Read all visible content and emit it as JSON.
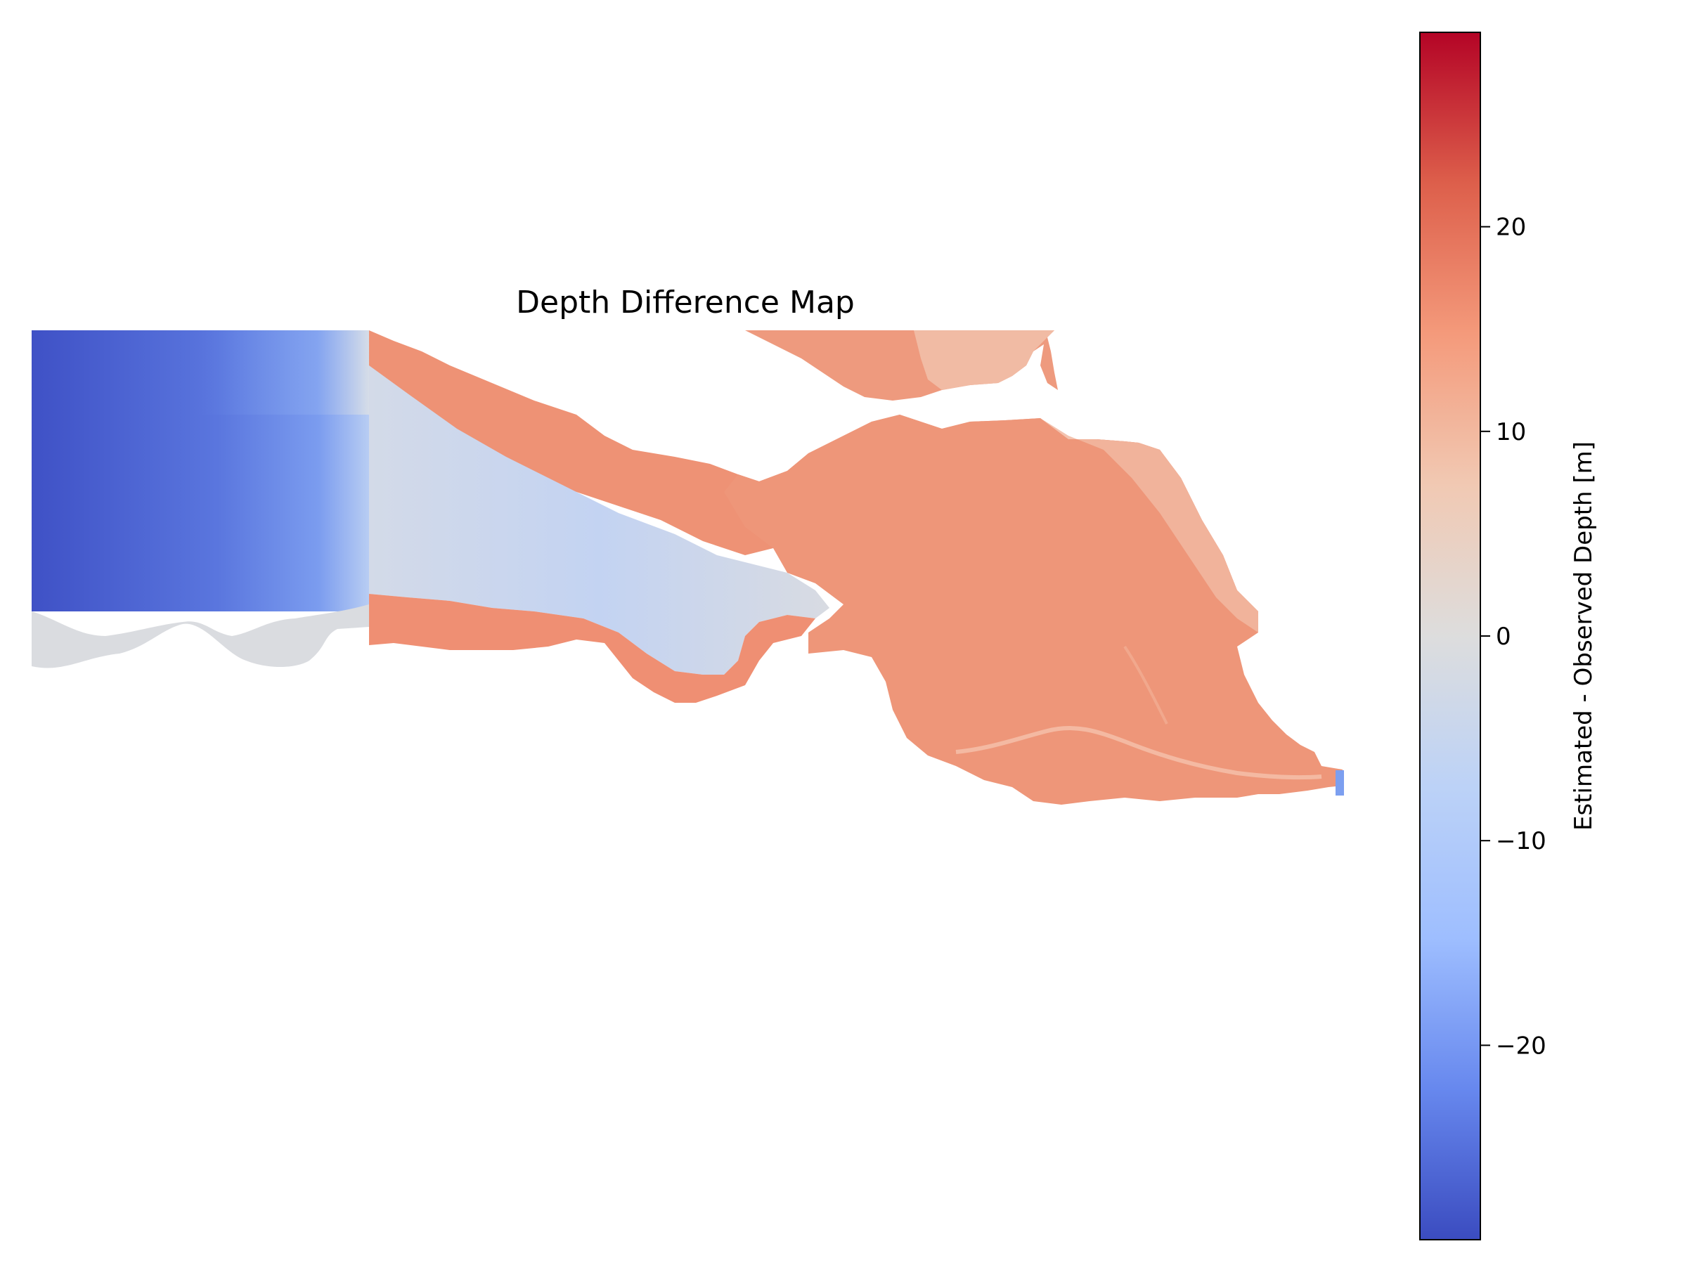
{
  "title": "Depth Difference Map",
  "colorbar": {
    "label": "Estimated - Observed Depth [m]",
    "colormap": "coolwarm",
    "range": [
      -29.5,
      29.5
    ],
    "ticks": [
      {
        "value": 20,
        "label": "20"
      },
      {
        "value": 10,
        "label": "10"
      },
      {
        "value": 0,
        "label": "0"
      },
      {
        "value": -10,
        "label": "−10"
      },
      {
        "value": -20,
        "label": "−20"
      }
    ],
    "stops": [
      {
        "offset": 0.0,
        "color": "#b40426"
      },
      {
        "offset": 0.125,
        "color": "#dd5f4b"
      },
      {
        "offset": 0.25,
        "color": "#f49a7b"
      },
      {
        "offset": 0.375,
        "color": "#f1c9b3"
      },
      {
        "offset": 0.5,
        "color": "#dddddd"
      },
      {
        "offset": 0.625,
        "color": "#bcd2f7"
      },
      {
        "offset": 0.75,
        "color": "#9ebeff"
      },
      {
        "offset": 0.875,
        "color": "#6788ee"
      },
      {
        "offset": 1.0,
        "color": "#3b4cc0"
      }
    ]
  },
  "map_colors": {
    "positive": "#ee9275",
    "positive_light": "#f1b9a1",
    "neutral": "#dadce0",
    "light_blue": "#c5d5f3",
    "deep_blue": "#4966d6",
    "mid_blue": "#6b8ee8"
  }
}
